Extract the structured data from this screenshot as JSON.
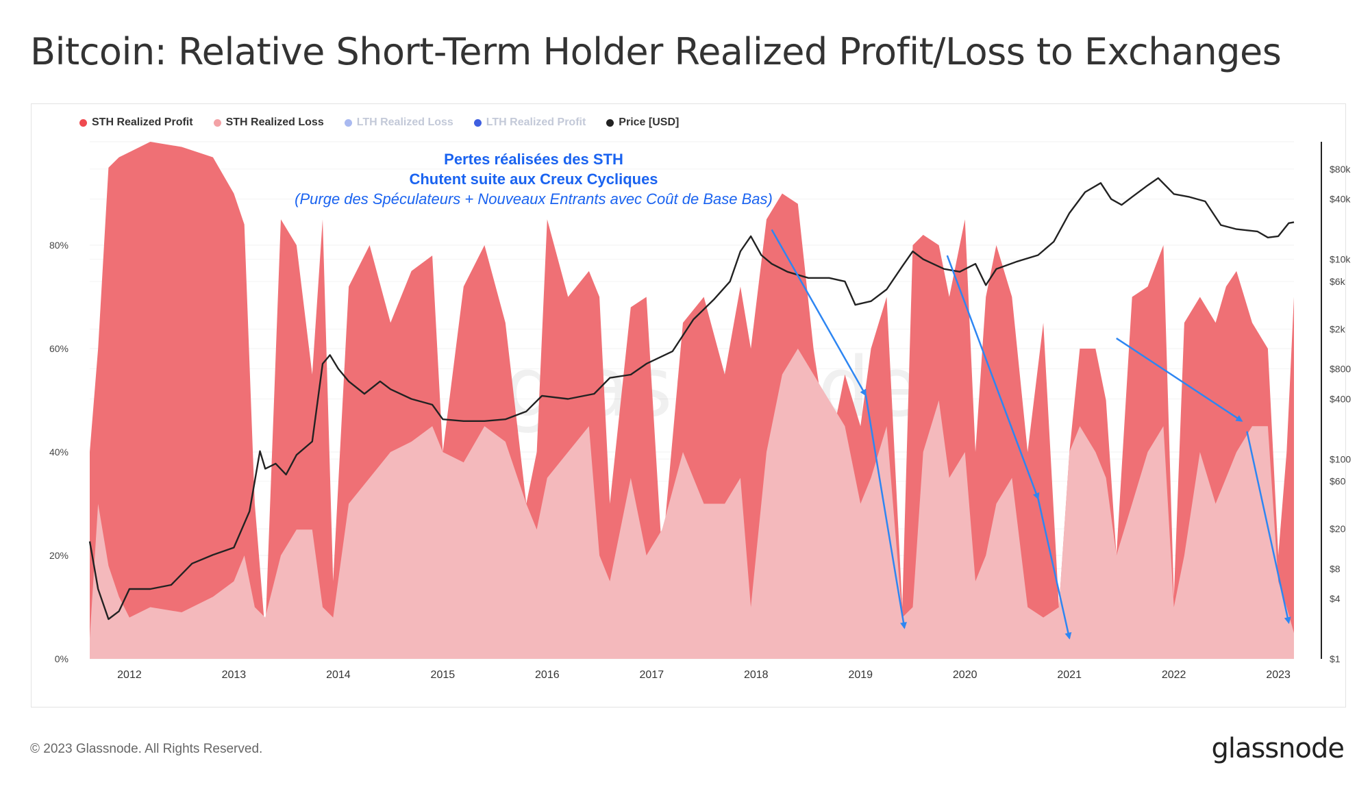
{
  "title": "Bitcoin: Relative Short-Term Holder Realized Profit/Loss to Exchanges",
  "footer": "© 2023 Glassnode. All Rights Reserved.",
  "brand": "glassnode",
  "watermark": "glassnode",
  "annotation": {
    "line1": "Pertes réalisées des STH",
    "line2": "Chutent suite aux Creux Cycliques",
    "line3": "(Purge des Spéculateurs + Nouveaux Entrants avec Coût de Base Bas)"
  },
  "colors": {
    "profit": "#ef7075",
    "loss": "#f4b9bc",
    "price": "#222222",
    "lth_loss": "#a9b9f0",
    "lth_profit": "#3f5fe0",
    "annotation": "#1a63f0",
    "arrow": "#2e86f2"
  },
  "chart_data": {
    "type": "area",
    "legend_position": "top-left",
    "legend": [
      {
        "label": "STH Realized Profit",
        "color": "#ef4a4f",
        "active": true
      },
      {
        "label": "STH Realized Loss",
        "color": "#f3a2a6",
        "active": true
      },
      {
        "label": "LTH Realized Loss",
        "color": "#a9b9f0",
        "active": false
      },
      {
        "label": "LTH Realized Profit",
        "color": "#3f5fe0",
        "active": false
      },
      {
        "label": "Price [USD]",
        "color": "#222222",
        "active": true
      }
    ],
    "x_ticks": [
      "2012",
      "2013",
      "2014",
      "2015",
      "2016",
      "2017",
      "2018",
      "2019",
      "2020",
      "2021",
      "2022",
      "2023"
    ],
    "x_range": [
      2011.62,
      2023.15
    ],
    "y_left_ticks": [
      "0%",
      "20%",
      "40%",
      "60%",
      "80%"
    ],
    "y_left_range": [
      0,
      100
    ],
    "y_right_ticks": [
      "$1",
      "$4",
      "$8",
      "$20",
      "$60",
      "$100",
      "$400",
      "$800",
      "$2k",
      "$6k",
      "$10k",
      "$40k",
      "$80k"
    ],
    "y_right_values": [
      1,
      4,
      8,
      20,
      60,
      100,
      400,
      800,
      2000,
      6000,
      10000,
      40000,
      80000
    ],
    "y_right_scale": "log",
    "y_right_range": [
      1,
      150000
    ],
    "series": [
      {
        "name": "STH Realized Loss",
        "x": [
          2011.62,
          2011.7,
          2011.8,
          2011.9,
          2012.0,
          2012.2,
          2012.5,
          2012.8,
          2013.0,
          2013.1,
          2013.2,
          2013.3,
          2013.45,
          2013.6,
          2013.75,
          2013.85,
          2013.95,
          2014.1,
          2014.3,
          2014.5,
          2014.7,
          2014.9,
          2015.0,
          2015.2,
          2015.4,
          2015.6,
          2015.8,
          2015.9,
          2016.0,
          2016.2,
          2016.4,
          2016.5,
          2016.6,
          2016.8,
          2016.95,
          2017.1,
          2017.3,
          2017.5,
          2017.7,
          2017.85,
          2017.95,
          2018.1,
          2018.25,
          2018.4,
          2018.55,
          2018.7,
          2018.85,
          2019.0,
          2019.1,
          2019.25,
          2019.4,
          2019.5,
          2019.6,
          2019.75,
          2019.85,
          2020.0,
          2020.1,
          2020.2,
          2020.3,
          2020.45,
          2020.6,
          2020.75,
          2020.9,
          2021.0,
          2021.1,
          2021.25,
          2021.35,
          2021.45,
          2021.6,
          2021.75,
          2021.9,
          2022.0,
          2022.1,
          2022.25,
          2022.4,
          2022.5,
          2022.6,
          2022.75,
          2022.9,
          2023.0,
          2023.08,
          2023.15
        ],
        "values": [
          4,
          30,
          18,
          12,
          8,
          10,
          9,
          12,
          15,
          20,
          10,
          8,
          20,
          25,
          25,
          10,
          8,
          30,
          35,
          40,
          42,
          45,
          40,
          38,
          45,
          42,
          30,
          25,
          35,
          40,
          45,
          20,
          15,
          35,
          20,
          25,
          40,
          30,
          30,
          35,
          10,
          40,
          55,
          60,
          55,
          50,
          45,
          30,
          35,
          45,
          8,
          10,
          40,
          50,
          35,
          40,
          15,
          20,
          30,
          35,
          10,
          8,
          10,
          40,
          45,
          40,
          35,
          20,
          30,
          40,
          45,
          10,
          20,
          40,
          30,
          35,
          40,
          45,
          45,
          15,
          10,
          5
        ]
      },
      {
        "name": "STH Realized Profit",
        "x": [
          2011.62,
          2011.7,
          2011.8,
          2011.9,
          2012.0,
          2012.2,
          2012.5,
          2012.8,
          2013.0,
          2013.1,
          2013.2,
          2013.3,
          2013.45,
          2013.6,
          2013.75,
          2013.85,
          2013.95,
          2014.1,
          2014.3,
          2014.5,
          2014.7,
          2014.9,
          2015.0,
          2015.2,
          2015.4,
          2015.6,
          2015.8,
          2015.9,
          2016.0,
          2016.2,
          2016.4,
          2016.5,
          2016.6,
          2016.8,
          2016.95,
          2017.1,
          2017.3,
          2017.5,
          2017.7,
          2017.85,
          2017.95,
          2018.1,
          2018.25,
          2018.4,
          2018.55,
          2018.7,
          2018.85,
          2019.0,
          2019.1,
          2019.25,
          2019.4,
          2019.5,
          2019.6,
          2019.75,
          2019.85,
          2020.0,
          2020.1,
          2020.2,
          2020.3,
          2020.45,
          2020.6,
          2020.75,
          2020.9,
          2021.0,
          2021.1,
          2021.25,
          2021.35,
          2021.45,
          2021.6,
          2021.75,
          2021.9,
          2022.0,
          2022.1,
          2022.25,
          2022.4,
          2022.5,
          2022.6,
          2022.75,
          2022.9,
          2023.0,
          2023.08,
          2023.15
        ],
        "values": [
          40,
          60,
          95,
          97,
          98,
          100,
          99,
          97,
          90,
          84,
          30,
          5,
          85,
          80,
          55,
          85,
          15,
          72,
          80,
          65,
          75,
          78,
          40,
          72,
          80,
          65,
          30,
          40,
          85,
          70,
          75,
          70,
          30,
          68,
          70,
          20,
          65,
          70,
          55,
          72,
          60,
          85,
          90,
          88,
          60,
          40,
          55,
          45,
          60,
          70,
          10,
          80,
          82,
          80,
          70,
          85,
          40,
          70,
          80,
          70,
          40,
          65,
          10,
          40,
          60,
          60,
          50,
          20,
          70,
          72,
          80,
          12,
          65,
          70,
          65,
          72,
          75,
          65,
          60,
          20,
          40,
          70
        ]
      },
      {
        "name": "Price [USD]",
        "axis": "right",
        "x": [
          2011.62,
          2011.7,
          2011.8,
          2011.9,
          2012.0,
          2012.2,
          2012.4,
          2012.6,
          2012.8,
          2013.0,
          2013.15,
          2013.25,
          2013.3,
          2013.4,
          2013.5,
          2013.6,
          2013.75,
          2013.85,
          2013.92,
          2014.0,
          2014.1,
          2014.25,
          2014.4,
          2014.5,
          2014.7,
          2014.9,
          2015.0,
          2015.2,
          2015.4,
          2015.6,
          2015.8,
          2015.95,
          2016.2,
          2016.45,
          2016.6,
          2016.8,
          2016.95,
          2017.2,
          2017.4,
          2017.6,
          2017.75,
          2017.85,
          2017.95,
          2018.05,
          2018.15,
          2018.3,
          2018.5,
          2018.7,
          2018.85,
          2018.95,
          2019.1,
          2019.25,
          2019.4,
          2019.5,
          2019.6,
          2019.8,
          2019.95,
          2020.1,
          2020.2,
          2020.3,
          2020.5,
          2020.7,
          2020.85,
          2021.0,
          2021.15,
          2021.3,
          2021.4,
          2021.5,
          2021.6,
          2021.75,
          2021.85,
          2022.0,
          2022.15,
          2022.3,
          2022.45,
          2022.6,
          2022.8,
          2022.9,
          2023.0,
          2023.1,
          2023.15
        ],
        "values": [
          15,
          5,
          2.5,
          3,
          5,
          5,
          5.5,
          9,
          11,
          13,
          30,
          120,
          80,
          90,
          70,
          110,
          150,
          900,
          1100,
          800,
          600,
          450,
          600,
          500,
          400,
          350,
          250,
          240,
          240,
          250,
          300,
          430,
          400,
          450,
          650,
          700,
          900,
          1200,
          2500,
          4000,
          6000,
          12000,
          17000,
          11000,
          9000,
          7500,
          6500,
          6500,
          6000,
          3500,
          3800,
          5000,
          8500,
          12000,
          10000,
          8000,
          7500,
          9000,
          5500,
          8000,
          9500,
          11000,
          15000,
          29000,
          47000,
          58000,
          40000,
          35000,
          42000,
          55000,
          65000,
          45000,
          42000,
          38000,
          22000,
          20000,
          19000,
          16500,
          17000,
          23000,
          23500
        ]
      }
    ],
    "arrows": [
      {
        "from": [
          2018.15,
          83
        ],
        "to": [
          2019.05,
          51
        ]
      },
      {
        "from": [
          2019.05,
          51
        ],
        "to": [
          2019.42,
          6
        ]
      },
      {
        "from": [
          2019.83,
          78
        ],
        "to": [
          2020.7,
          31
        ]
      },
      {
        "from": [
          2020.7,
          31
        ],
        "to": [
          2021.0,
          4
        ]
      },
      {
        "from": [
          2021.45,
          62
        ],
        "to": [
          2022.65,
          46
        ]
      },
      {
        "from": [
          2022.7,
          44
        ],
        "to": [
          2023.1,
          7
        ]
      }
    ]
  }
}
